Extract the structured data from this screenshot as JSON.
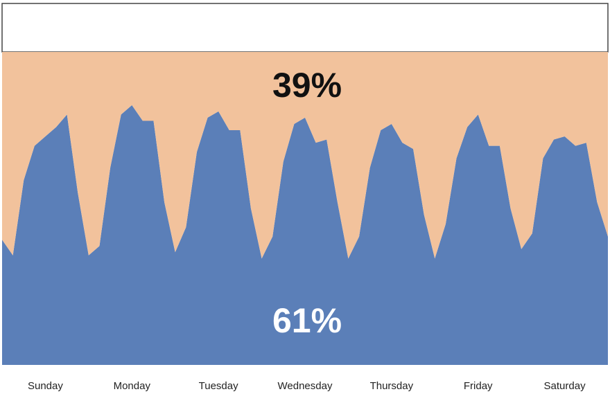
{
  "chart_data": {
    "type": "area",
    "annotations": [
      "39%",
      "61%"
    ],
    "x": [
      0,
      0.125,
      0.25,
      0.375,
      0.5,
      0.625,
      0.75,
      0.875,
      1,
      1.125,
      1.25,
      1.375,
      1.5,
      1.625,
      1.75,
      1.875,
      2,
      2.125,
      2.25,
      2.375,
      2.5,
      2.625,
      2.75,
      2.875,
      3,
      3.125,
      3.25,
      3.375,
      3.5,
      3.625,
      3.75,
      3.875,
      4,
      4.125,
      4.25,
      4.375,
      4.5,
      4.625,
      4.75,
      4.875,
      5,
      5.125,
      5.25,
      5.375,
      5.5,
      5.625,
      5.75,
      5.875,
      6,
      6.125,
      6.25,
      6.375,
      6.5,
      6.625,
      6.75,
      6.875,
      7
    ],
    "series": [
      {
        "color": "#5b7fb8",
        "values": [
          40,
          35,
          59,
          70,
          73,
          76,
          80,
          55,
          35,
          38,
          63,
          80,
          83,
          78,
          78,
          52,
          36,
          44,
          68,
          79,
          81,
          75,
          75,
          50,
          34,
          41,
          65,
          77,
          79,
          71,
          72,
          52,
          34,
          41,
          63,
          75,
          77,
          71,
          69,
          48,
          34,
          45,
          66,
          76,
          80,
          70,
          70,
          50,
          37,
          42,
          66,
          72,
          73,
          70,
          71,
          52,
          41
        ]
      },
      {
        "color": "#f2c29c",
        "values": [
          60,
          65,
          41,
          30,
          27,
          24,
          20,
          45,
          65,
          62,
          37,
          20,
          17,
          22,
          22,
          48,
          64,
          56,
          32,
          21,
          19,
          25,
          25,
          50,
          66,
          59,
          35,
          23,
          21,
          29,
          28,
          48,
          66,
          59,
          37,
          25,
          23,
          29,
          31,
          52,
          66,
          55,
          34,
          24,
          20,
          30,
          30,
          50,
          63,
          58,
          34,
          28,
          27,
          30,
          29,
          48,
          59
        ]
      }
    ],
    "xlim": [
      0,
      7
    ],
    "xticks": [
      {
        "value": 0.5,
        "label": "Sunday"
      },
      {
        "value": 1.5,
        "label": "Monday"
      },
      {
        "value": 2.5,
        "label": "Tuesday"
      },
      {
        "value": 3.5,
        "label": "Wednesday"
      },
      {
        "value": 4.5,
        "label": "Thursday"
      },
      {
        "value": 5.5,
        "label": "Friday"
      },
      {
        "value": 6.5,
        "label": "Saturday"
      }
    ],
    "ylim": [
      0,
      100
    ]
  }
}
